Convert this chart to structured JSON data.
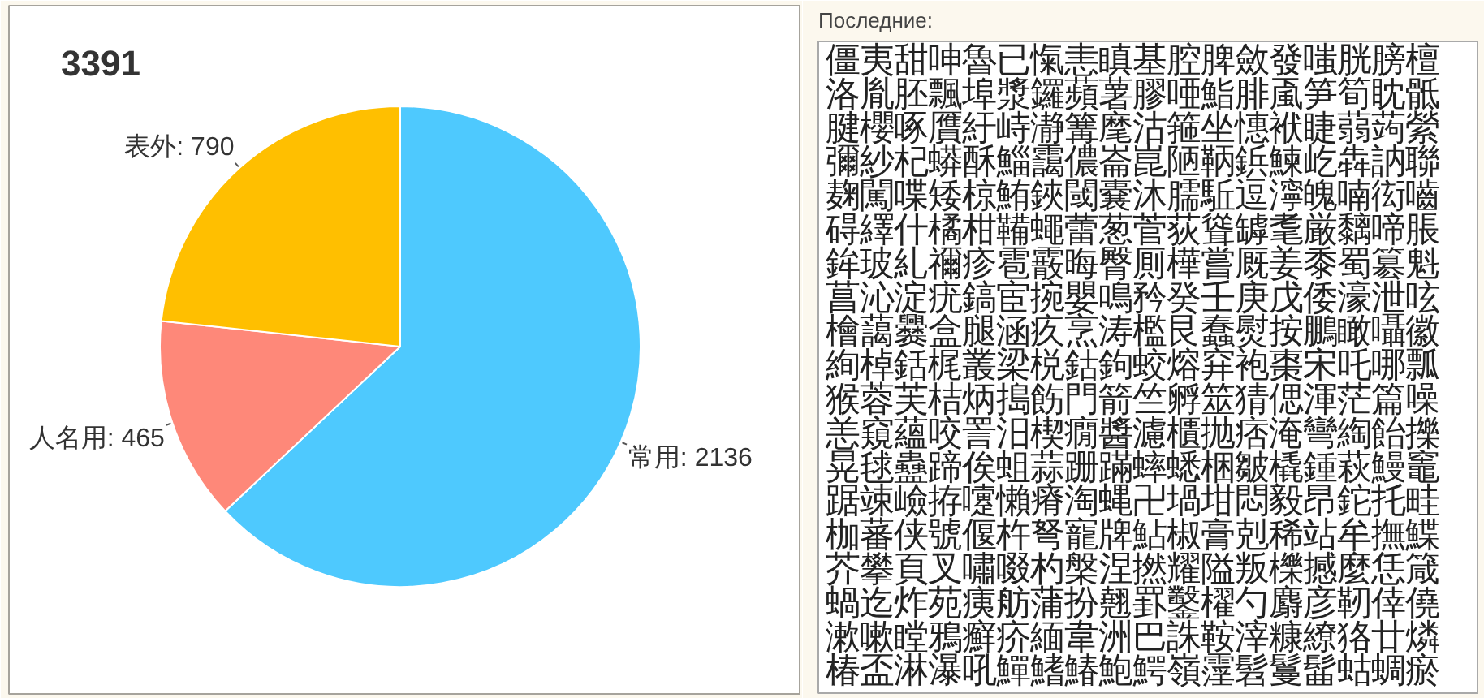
{
  "chart_data": [
    {
      "type": "pie",
      "title": "3391",
      "categories": [
        "常用",
        "人名用",
        "表外"
      ],
      "values": [
        2136,
        465,
        790
      ],
      "colors": [
        "#4ec9fe",
        "#fe8879",
        "#ffbf00"
      ],
      "value_labels": [
        ": 2136",
        ": 465",
        ": 790"
      ]
    },
    {
      "type": "other",
      "title": "Последние:",
      "annotations": [
        "僵夷甜呻魯已愾恚瞋基腔脾斂發嗤胱膀檀",
        "洛胤胚飄埠漿鑼蘋薯膠唖鮨腓颪笋筍眈骶",
        "腱櫻啄贋紆峙瀞篝麾沽箍坐憓袱睫蒻蒟縈",
        "彌紗杞蟒酥鯔靄儂崙崑陋鞆鋲鰊屹犇訥聯",
        "麹闖喋矮椋鮪鋏閾嚢沐臑駈逗濘魄喃衒嚙",
        "碍繹什橘柑鞴蠅蕾葱菅荻聳罅耄厳黐啼脹",
        "鉾玻糺禰疹雹霰晦臀厠樺嘗厩姜黍蜀簒魁",
        "菖沁淀疣鎬宦捥嬰鳴矜癸壬庚戊倭濠泄呟",
        "檜藹爨盒腿涵疚烹涛檻艮蠢熨按鵬瞰囁徽",
        "絢棹銛梶叢梁棁鈷鉤蛟熔穽袍棗宋吒哪瓢",
        "猴蓉芙桔炳搗飭門箭竺孵筮猜偲渾茫篇噪",
        "恙窺蘊咬詈汨楔癇醬濾櫃抛痞淹彎綯飴擽",
        "晃毬蠱蹄俟蛆蒜跚蹣蟀蟋梱皺橇鍾萩鰻竈",
        "踞竦嶮拵嚔懶瘠淘蝿卍堝坩悶毅昂鉈托畦",
        "枷蕃侠號偃杵弩寵牌鮎椒膏剋稀站牟撫鰈",
        "芥攀頁叉嘯啜杓槃涅撚耀隘叛櫟撼麼恁箴",
        "蝸迄炸苑痍舫蒲扮翹罫鑿櫂勺麝彦靭倖僥",
        "漱嗽瞠鴉癬疥緬韋洲巴誅鞍滓糠繚狢廿燐",
        "椿盃淋瀑吼鱓鰭鰆鮑鰐嶺霪髫鬘髷蛄蜩瘀"
      ]
    }
  ]
}
